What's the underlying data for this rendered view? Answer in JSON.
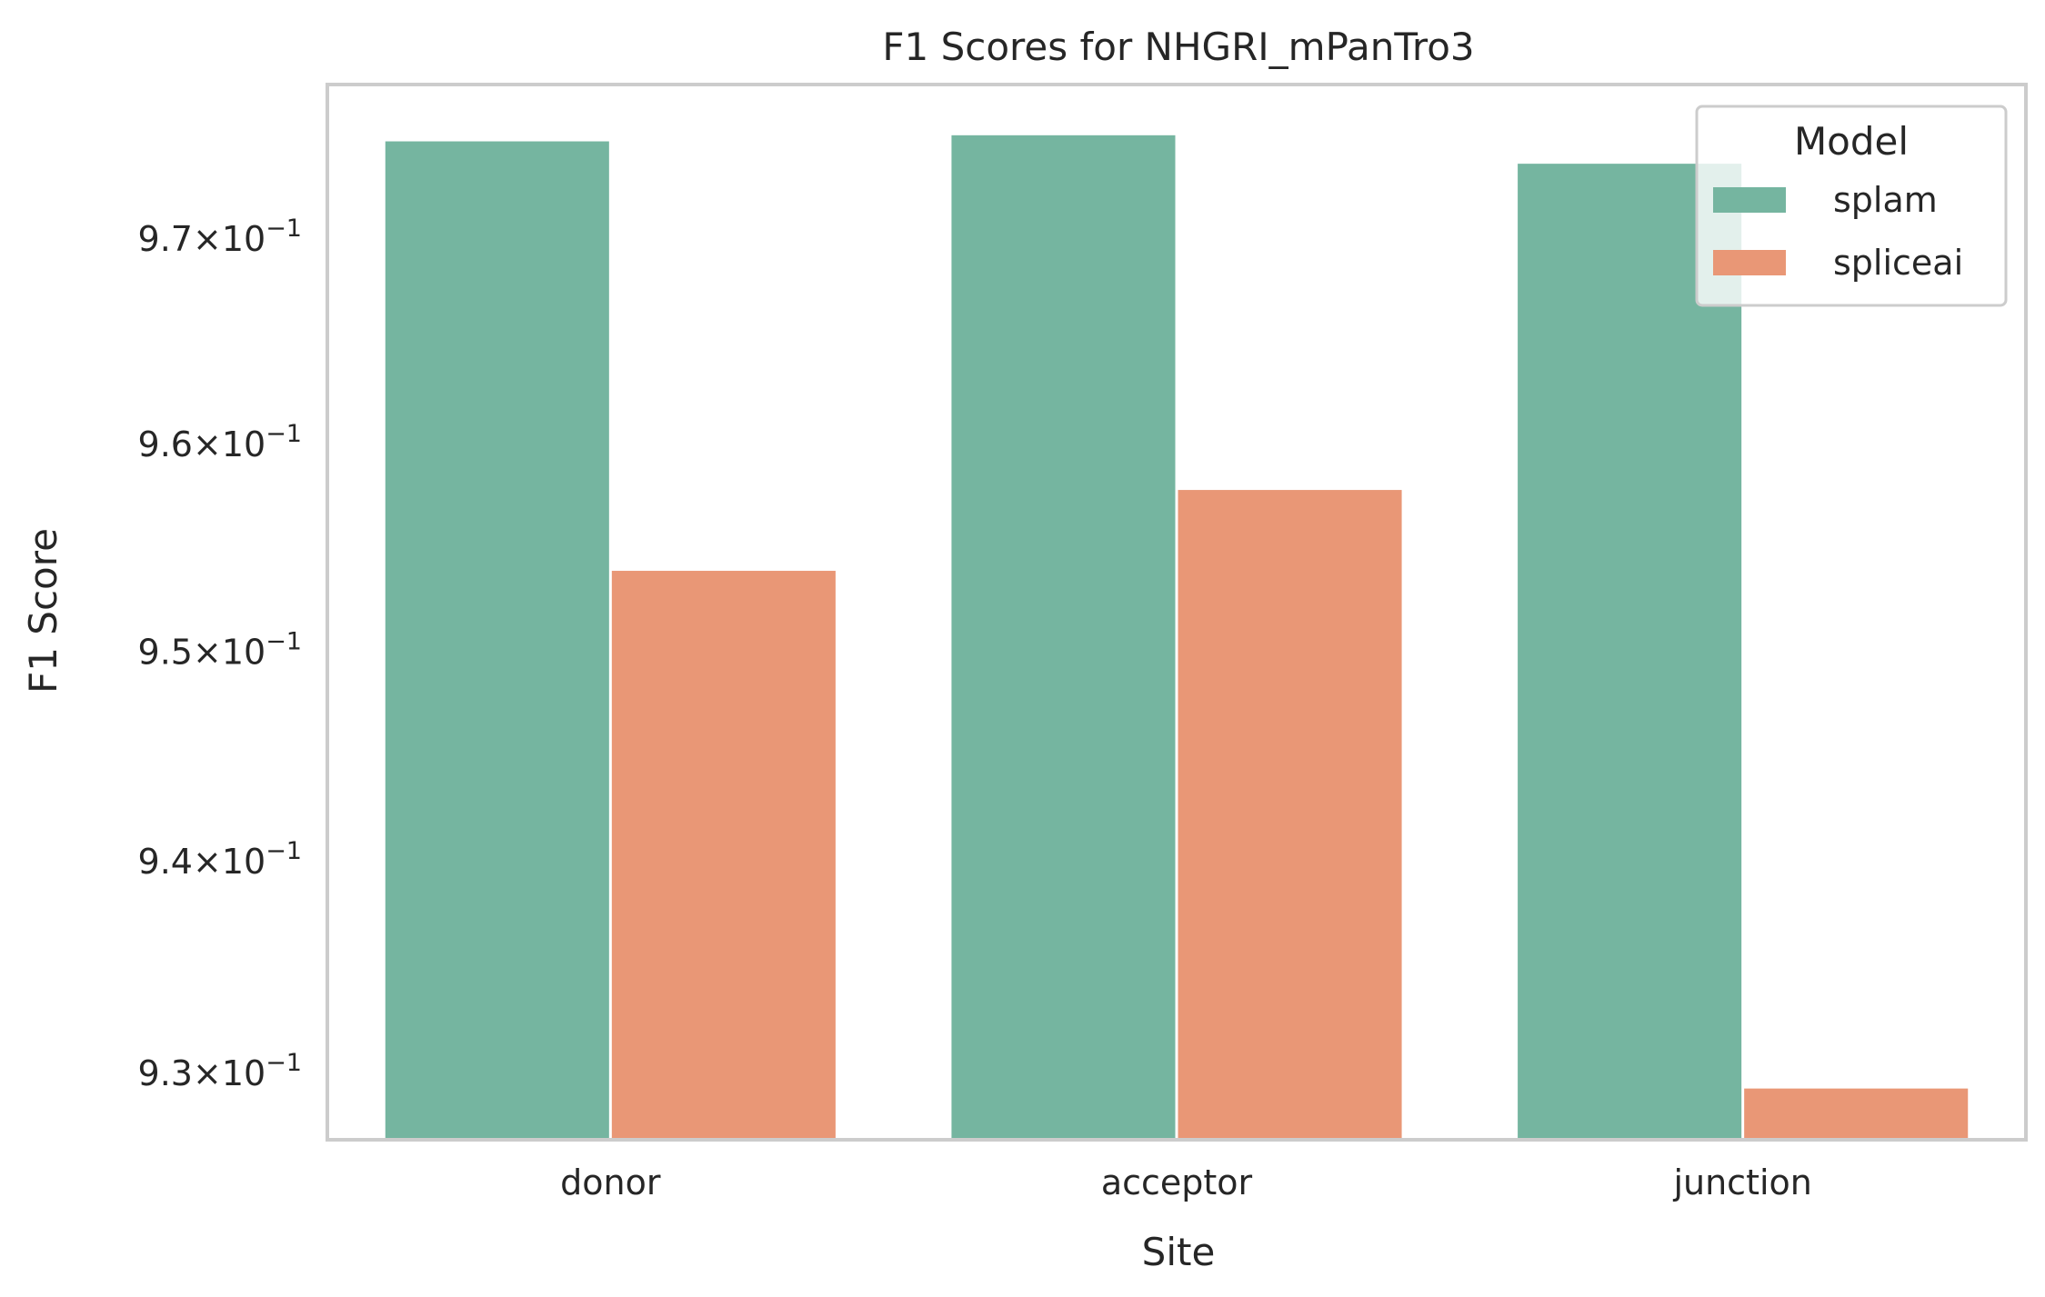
{
  "chart_data": {
    "type": "bar",
    "title": "F1 Scores for NHGRI_mPanTro3",
    "xlabel": "Site",
    "ylabel": "F1 Score",
    "categories": [
      "donor",
      "acceptor",
      "junction"
    ],
    "series": [
      {
        "name": "splam",
        "values": [
          0.9748,
          0.9751,
          0.9737
        ],
        "color": "#75b5a0"
      },
      {
        "name": "spliceai",
        "values": [
          0.9539,
          0.9578,
          0.9293
        ],
        "color": "#e99776"
      }
    ],
    "yscale": "log",
    "ylim": [
      0.9269,
      0.9776
    ],
    "yticks": [
      {
        "value": 0.93,
        "mantissa": "9.3"
      },
      {
        "value": 0.94,
        "mantissa": "9.4"
      },
      {
        "value": 0.95,
        "mantissa": "9.5"
      },
      {
        "value": 0.96,
        "mantissa": "9.6"
      },
      {
        "value": 0.97,
        "mantissa": "9.7"
      }
    ],
    "tick_base": "10",
    "tick_exponent": "−1",
    "grid": false,
    "legend": {
      "title": "Model",
      "placement": "top-right"
    }
  }
}
